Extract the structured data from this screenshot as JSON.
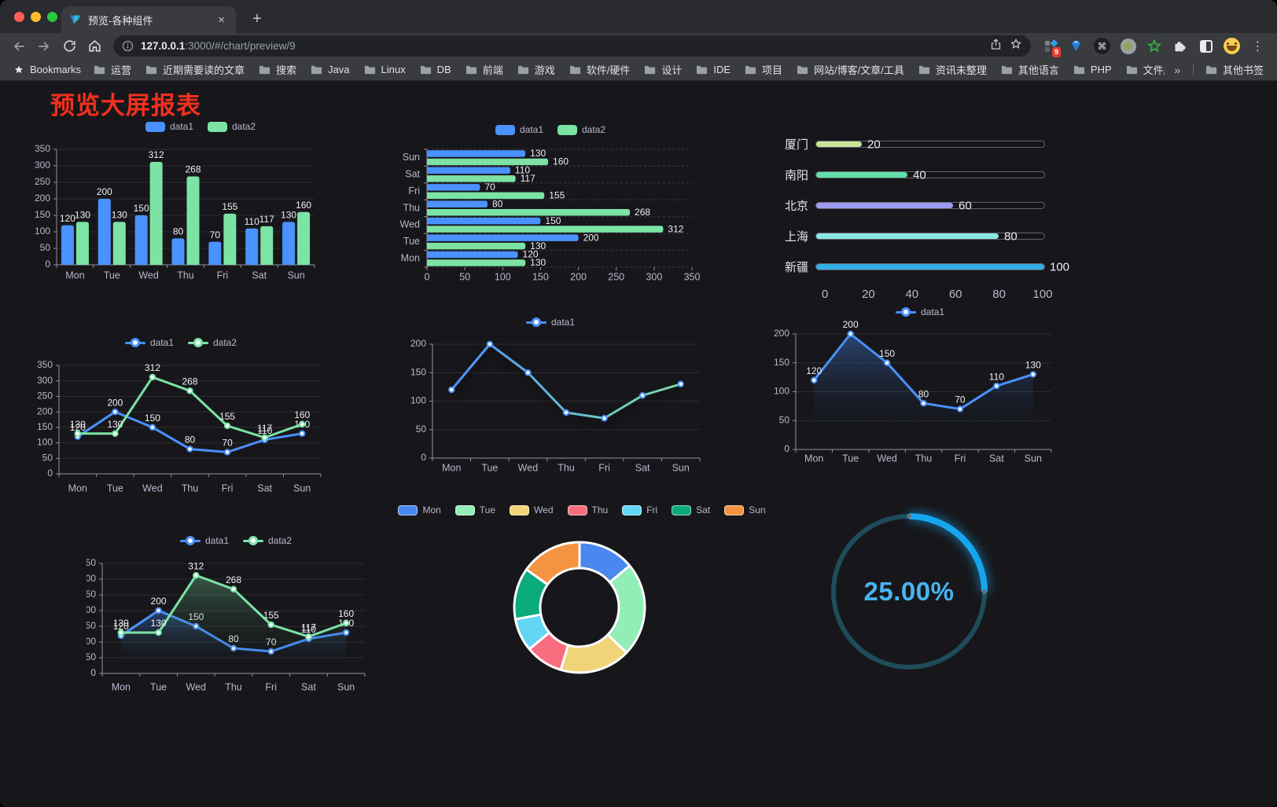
{
  "browser": {
    "tab": {
      "title": "预览-各种组件",
      "close": "×",
      "new_tab": "+"
    },
    "url": {
      "host": "127.0.0.1",
      "path": ":3000/#/chart/preview/9"
    },
    "extension_badge": "9",
    "icons": {
      "menu": "⋮",
      "command": "⌘"
    },
    "bookmarks_label": "Bookmarks",
    "bookmarks": [
      "运营",
      "近期需要读的文章",
      "搜索",
      "Java",
      "Linux",
      "DB",
      "前端",
      "游戏",
      "软件/硬件",
      "设计",
      "IDE",
      "项目",
      "网站/博客/文章/工具",
      "资讯未整理",
      "其他语言",
      "PHP",
      "文件服务器"
    ],
    "bookmarks_overflow": "»",
    "other_bookmarks": "其他书签"
  },
  "page": {
    "title": "预览大屏报表",
    "title_color": "#f1301d",
    "background": "#17171b"
  },
  "colors": {
    "series_blue": "#4992ff",
    "series_green": "#7ce3a5",
    "axis_text": "#b9b8ce",
    "data_label": "#eef0f4"
  },
  "chart_data": [
    {
      "id": "bar-vertical",
      "type": "bar",
      "categories": [
        "Mon",
        "Tue",
        "Wed",
        "Thu",
        "Fri",
        "Sat",
        "Sun"
      ],
      "series": [
        {
          "name": "data1",
          "color": "#4992ff",
          "values": [
            120,
            200,
            150,
            80,
            70,
            110,
            130
          ]
        },
        {
          "name": "data2",
          "color": "#7ce3a5",
          "values": [
            130,
            130,
            312,
            268,
            155,
            117,
            160
          ]
        }
      ],
      "ylim": [
        0,
        350
      ],
      "ytick_step": 50,
      "labels": true,
      "legend_position": "top"
    },
    {
      "id": "bar-horizontal",
      "type": "bar-horizontal",
      "categories_top_to_bottom": [
        "Sun",
        "Sat",
        "Fri",
        "Thu",
        "Wed",
        "Tue",
        "Mon"
      ],
      "series": [
        {
          "name": "data1",
          "color": "#4992ff",
          "values_top_to_bottom": [
            130,
            110,
            70,
            80,
            150,
            200,
            120
          ]
        },
        {
          "name": "data2",
          "color": "#7ce3a5",
          "values_top_to_bottom": [
            160,
            117,
            155,
            268,
            312,
            130,
            130
          ]
        }
      ],
      "xlim": [
        0,
        350
      ],
      "xtick_step": 50,
      "labels": true,
      "legend_position": "top"
    },
    {
      "id": "progress-list",
      "type": "progress",
      "items": [
        {
          "label": "厦门",
          "value": 20,
          "color": "#c9e59a"
        },
        {
          "label": "南阳",
          "value": 40,
          "color": "#5fe0a8"
        },
        {
          "label": "北京",
          "value": 60,
          "color": "#9d9cf0"
        },
        {
          "label": "上海",
          "value": 80,
          "color": "#8be9e3"
        },
        {
          "label": "新疆",
          "value": 100,
          "color": "#35aee3"
        }
      ],
      "xlim": [
        0,
        100
      ],
      "xticks": [
        0,
        20,
        40,
        60,
        80,
        100
      ]
    },
    {
      "id": "line-two",
      "type": "line",
      "categories": [
        "Mon",
        "Tue",
        "Wed",
        "Thu",
        "Fri",
        "Sat",
        "Sun"
      ],
      "series": [
        {
          "name": "data1",
          "color": "#4992ff",
          "values": [
            120,
            200,
            150,
            80,
            70,
            110,
            130
          ]
        },
        {
          "name": "data2",
          "color": "#7ce3a5",
          "values": [
            130,
            130,
            312,
            268,
            155,
            117,
            160
          ]
        }
      ],
      "ylim": [
        0,
        350
      ],
      "ytick_step": 50,
      "labels": true,
      "area": false
    },
    {
      "id": "line-gradient",
      "type": "line",
      "categories": [
        "Mon",
        "Tue",
        "Wed",
        "Thu",
        "Fri",
        "Sat",
        "Sun"
      ],
      "series": [
        {
          "name": "data1",
          "color": "#4992ff",
          "gradient": [
            "#4992ff",
            "#7ce3a5"
          ],
          "values": [
            120,
            200,
            150,
            80,
            70,
            110,
            130
          ]
        }
      ],
      "ylim": [
        0,
        200
      ],
      "ytick_step": 50,
      "labels": false,
      "area": false
    },
    {
      "id": "area-single",
      "type": "line",
      "categories": [
        "Mon",
        "Tue",
        "Wed",
        "Thu",
        "Fri",
        "Sat",
        "Sun"
      ],
      "series": [
        {
          "name": "data1",
          "color": "#4992ff",
          "values": [
            120,
            200,
            150,
            80,
            70,
            110,
            130
          ],
          "area": "rgba(73,146,255,0.38)"
        }
      ],
      "ylim": [
        0,
        200
      ],
      "ytick_step": 50,
      "labels": true,
      "area": true
    },
    {
      "id": "line-area-two",
      "type": "line",
      "categories": [
        "Mon",
        "Tue",
        "Wed",
        "Thu",
        "Fri",
        "Sat",
        "Sun"
      ],
      "series": [
        {
          "name": "data1",
          "color": "#4992ff",
          "values": [
            120,
            200,
            150,
            80,
            70,
            110,
            130
          ],
          "area": "rgba(73,146,255,0.35)"
        },
        {
          "name": "data2",
          "color": "#7ce3a5",
          "values": [
            130,
            130,
            312,
            268,
            155,
            117,
            160
          ],
          "area": "rgba(124,227,165,0.32)"
        }
      ],
      "ylim": [
        0,
        350
      ],
      "ytick_step": 50,
      "labels": true,
      "area": true
    },
    {
      "id": "donut",
      "type": "pie",
      "categories": [
        "Mon",
        "Tue",
        "Wed",
        "Thu",
        "Fri",
        "Sat",
        "Sun"
      ],
      "values": [
        120,
        200,
        150,
        80,
        70,
        110,
        130
      ],
      "colors": [
        "#4a87ee",
        "#92edb7",
        "#f2d478",
        "#f86e7e",
        "#64d6f5",
        "#0cab7c",
        "#f59440"
      ],
      "inner_radius_ratio": 0.6,
      "border_color": "#ffffff"
    },
    {
      "id": "gauge",
      "type": "gauge",
      "value": 25,
      "label": "25.00%",
      "color": "#17a5f1",
      "track_color": "#1e4c5a",
      "text_color": "#49b3f2"
    }
  ]
}
